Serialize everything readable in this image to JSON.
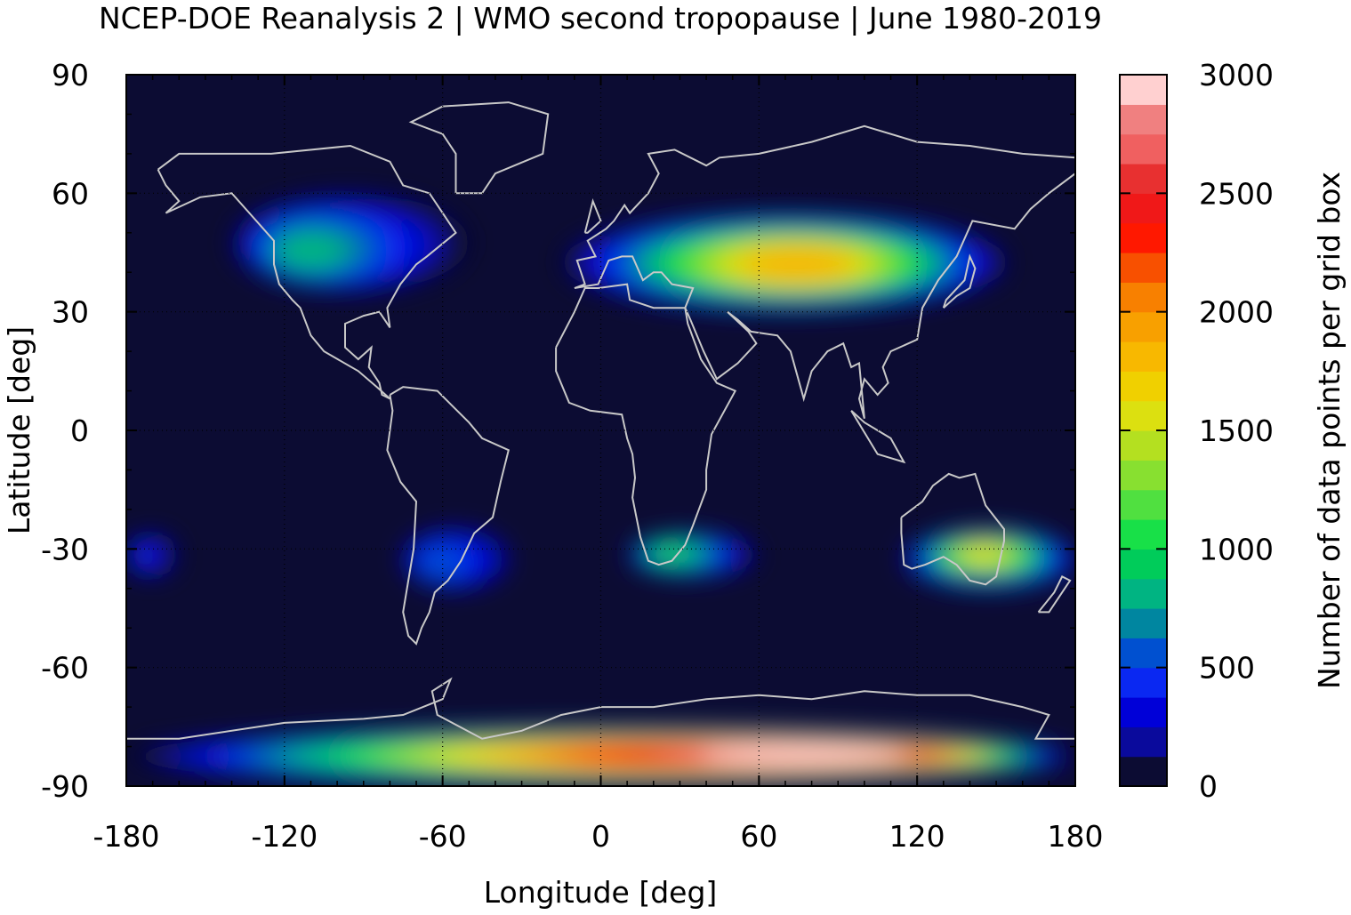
{
  "chart_data": {
    "type": "heatmap",
    "title": "NCEP-DOE Reanalysis 2 | WMO second tropopause | June 1980-2019",
    "xlabel": "Longitude [deg]",
    "ylabel": "Latitude [deg]",
    "xlim": [
      -180,
      180
    ],
    "ylim": [
      -90,
      90
    ],
    "x_ticks": [
      "-180",
      "-120",
      "-60",
      "0",
      "60",
      "120",
      "180"
    ],
    "y_ticks": [
      "90",
      "60",
      "30",
      "0",
      "-30",
      "-60",
      "-90"
    ],
    "colorbar": {
      "label": "Number of data points per grid box",
      "range": [
        0,
        3000
      ],
      "ticks": [
        "0",
        "500",
        "1000",
        "1500",
        "2000",
        "2500",
        "3000"
      ],
      "colors": [
        "#0c0c33",
        "#0a0a9c",
        "#0000d8",
        "#0a28f2",
        "#0050d0",
        "#0086a0",
        "#00b482",
        "#00cc5a",
        "#18e048",
        "#50e040",
        "#88e030",
        "#b4e020",
        "#dce010",
        "#f0d000",
        "#f8b800",
        "#f8a000",
        "#f88000",
        "#f85000",
        "#ff1800",
        "#f01818",
        "#e83030",
        "#f06060",
        "#f08080",
        "#ffd0d0"
      ]
    },
    "regions": [
      {
        "name": "Antarctic belt",
        "lon_range": [
          -180,
          180
        ],
        "lat_range": [
          -90,
          -75
        ],
        "peak_value": 2900,
        "peak_lon": 80,
        "peak_lat": -82
      },
      {
        "name": "Eurasian midlatitude band",
        "lon_range": [
          -15,
          155
        ],
        "lat_range": [
          30,
          55
        ],
        "peak_value": 1800,
        "peak_lon": 75,
        "peak_lat": 42
      },
      {
        "name": "North American band",
        "lon_range": [
          -140,
          -50
        ],
        "lat_range": [
          35,
          60
        ],
        "peak_value": 800,
        "peak_lon": -113,
        "peak_lat": 45
      },
      {
        "name": "Australian subtropics",
        "lon_range": [
          115,
          180
        ],
        "lat_range": [
          -40,
          -25
        ],
        "peak_value": 1500,
        "peak_lon": 145,
        "peak_lat": -31
      },
      {
        "name": "Southern Africa",
        "lon_range": [
          10,
          60
        ],
        "lat_range": [
          -37,
          -26
        ],
        "peak_value": 1100,
        "peak_lon": 25,
        "peak_lat": -31
      },
      {
        "name": "South America",
        "lon_range": [
          -75,
          -35
        ],
        "lat_range": [
          -40,
          -25
        ],
        "peak_value": 500,
        "peak_lon": -62,
        "peak_lat": -34
      },
      {
        "name": "Central Pacific (south)",
        "lon_range": [
          -180,
          -160
        ],
        "lat_range": [
          -37,
          -26
        ],
        "peak_value": 450,
        "peak_lon": -175,
        "peak_lat": -32
      }
    ]
  },
  "style": {
    "background": "#0c0c33",
    "coastline_color": "#c8c8c8"
  }
}
